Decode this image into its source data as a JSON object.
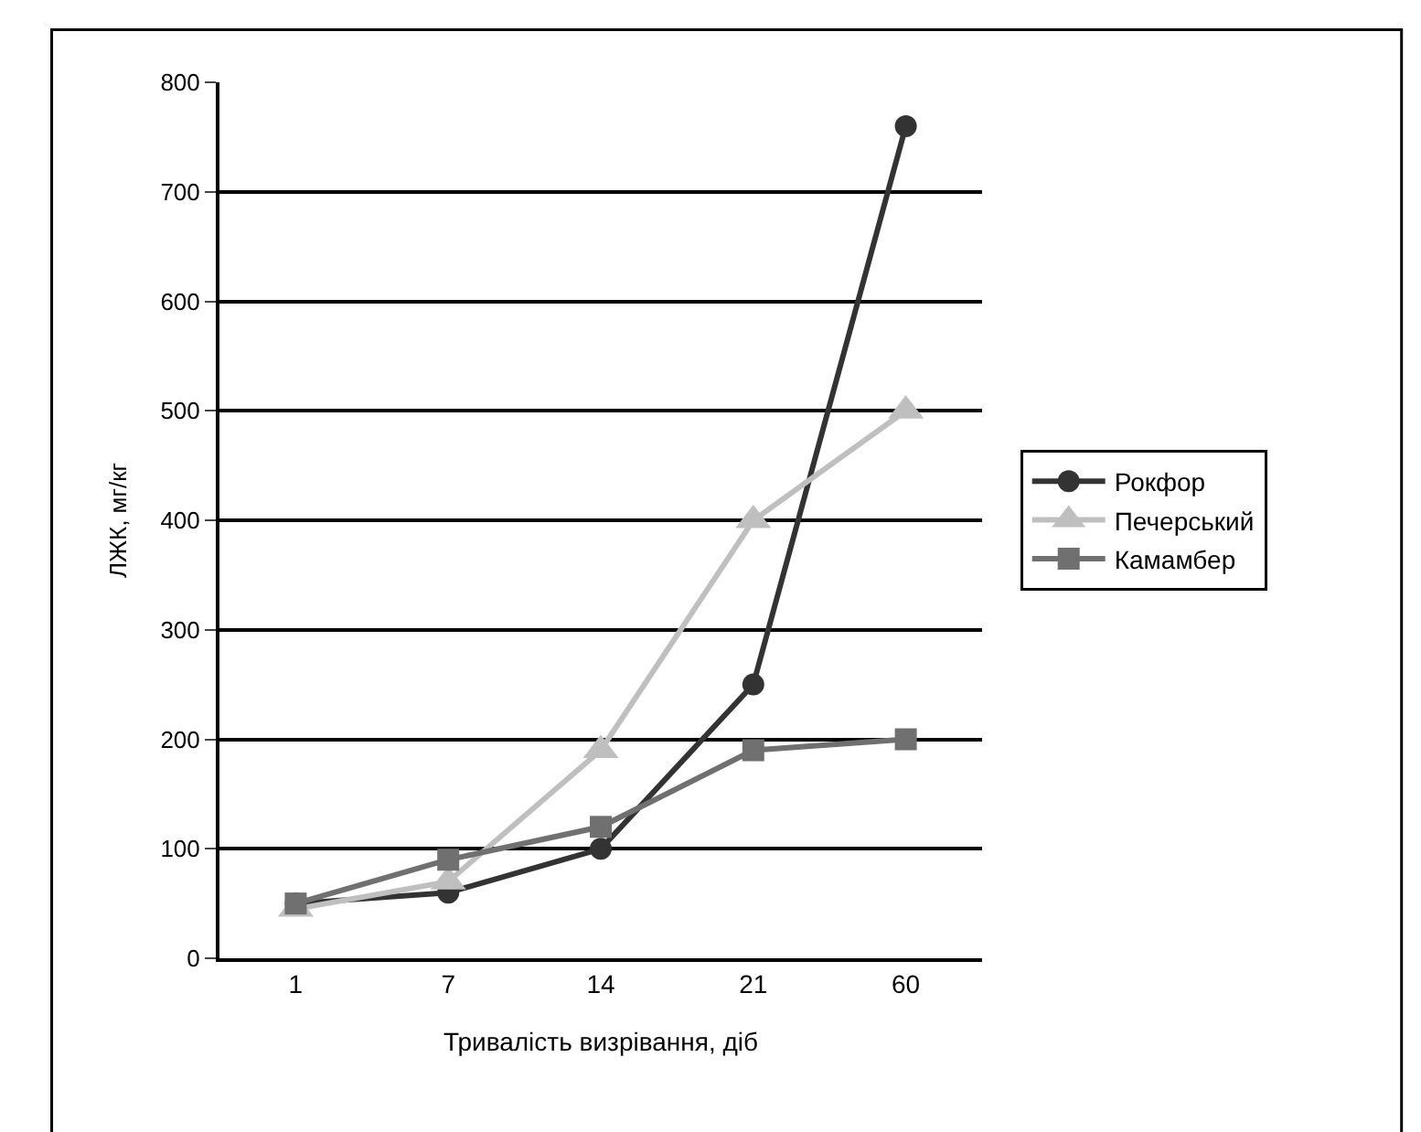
{
  "chart_data": {
    "type": "line",
    "xlabel": "Тривалість визрівання, діб",
    "ylabel": "ЛЖК, мг/кг",
    "categories": [
      "1",
      "7",
      "14",
      "21",
      "60"
    ],
    "series": [
      {
        "name": "Рокфор",
        "color": "#333333",
        "marker": "circle",
        "values": [
          50,
          60,
          100,
          250,
          760
        ]
      },
      {
        "name": "Печерський",
        "color": "#bfbfbf",
        "marker": "triangle",
        "values": [
          45,
          70,
          190,
          400,
          500
        ]
      },
      {
        "name": "Камамбер",
        "color": "#707070",
        "marker": "square",
        "values": [
          50,
          90,
          120,
          190,
          200
        ]
      }
    ],
    "ylim": [
      0,
      800
    ],
    "yticks": [
      0,
      100,
      200,
      300,
      400,
      500,
      600,
      700,
      800
    ],
    "grid": "y",
    "legend": "right",
    "line_style": "solid"
  }
}
